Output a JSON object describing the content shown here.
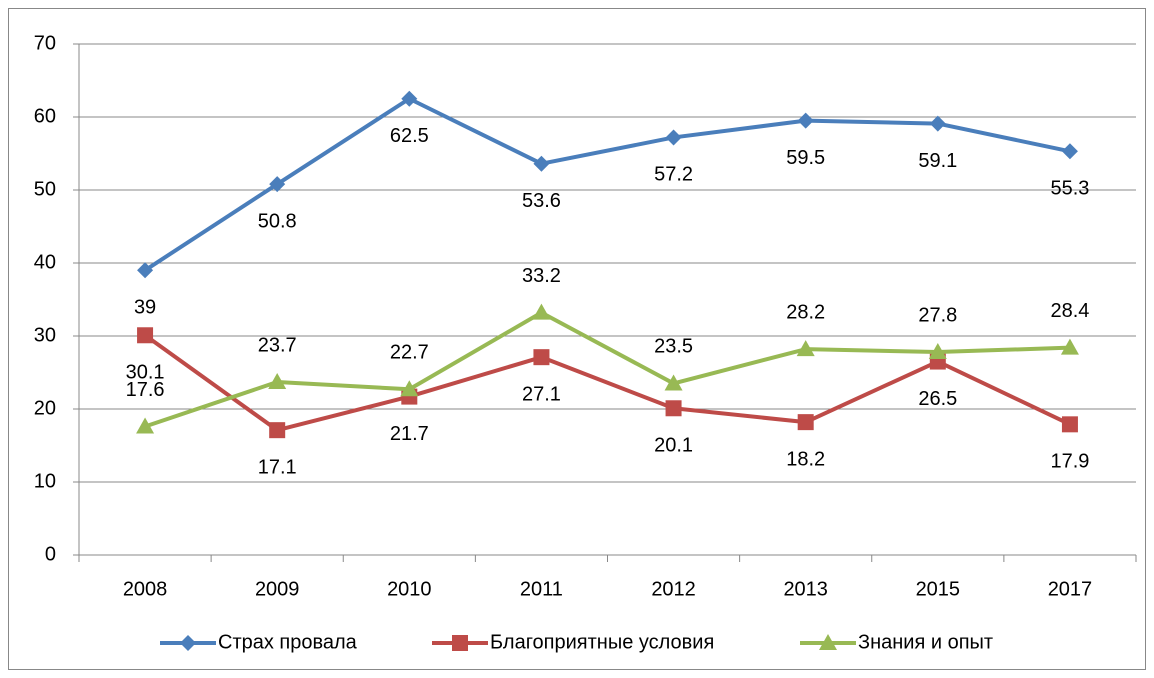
{
  "chart_data": {
    "type": "line",
    "categories": [
      "2008",
      "2009",
      "2010",
      "2011",
      "2012",
      "2013",
      "2015",
      "2017"
    ],
    "series": [
      {
        "name": "Страх провала",
        "color": "#4a7ebb",
        "marker": "diamond",
        "label_position": "below",
        "values": [
          39,
          50.8,
          62.5,
          53.6,
          57.2,
          59.5,
          59.1,
          55.3
        ]
      },
      {
        "name": "Благоприятные условия",
        "color": "#be4b48",
        "marker": "square",
        "label_position": "below",
        "values": [
          30.1,
          17.1,
          21.7,
          27.1,
          20.1,
          18.2,
          26.5,
          17.9
        ]
      },
      {
        "name": "Знания и опыт",
        "color": "#98b954",
        "marker": "triangle",
        "label_position": "above",
        "values": [
          17.6,
          23.7,
          22.7,
          33.2,
          23.5,
          28.2,
          27.8,
          28.4
        ]
      }
    ],
    "ylim": [
      0,
      70
    ],
    "yticks": [
      0,
      10,
      20,
      30,
      40,
      50,
      60,
      70
    ],
    "grid": true,
    "legend": "bottom"
  }
}
